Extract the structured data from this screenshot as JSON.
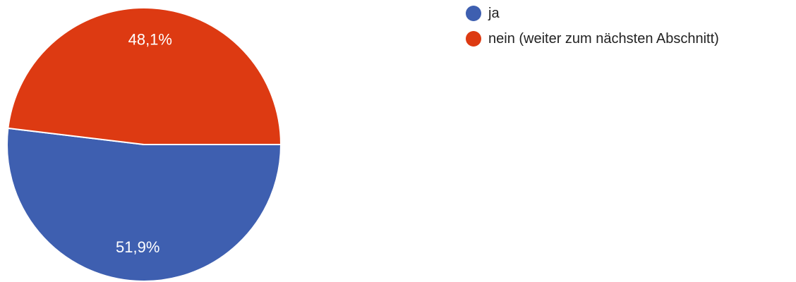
{
  "chart_data": {
    "type": "pie",
    "title": "",
    "legend_position": "top-right",
    "slices": [
      {
        "label": "ja",
        "value": 51.9,
        "value_label": "51,9%",
        "color": "#3e5fb0"
      },
      {
        "label": "nein (weiter zum nächsten Abschnitt)",
        "value": 48.1,
        "value_label": "48,1%",
        "color": "#dd3a12"
      }
    ]
  }
}
